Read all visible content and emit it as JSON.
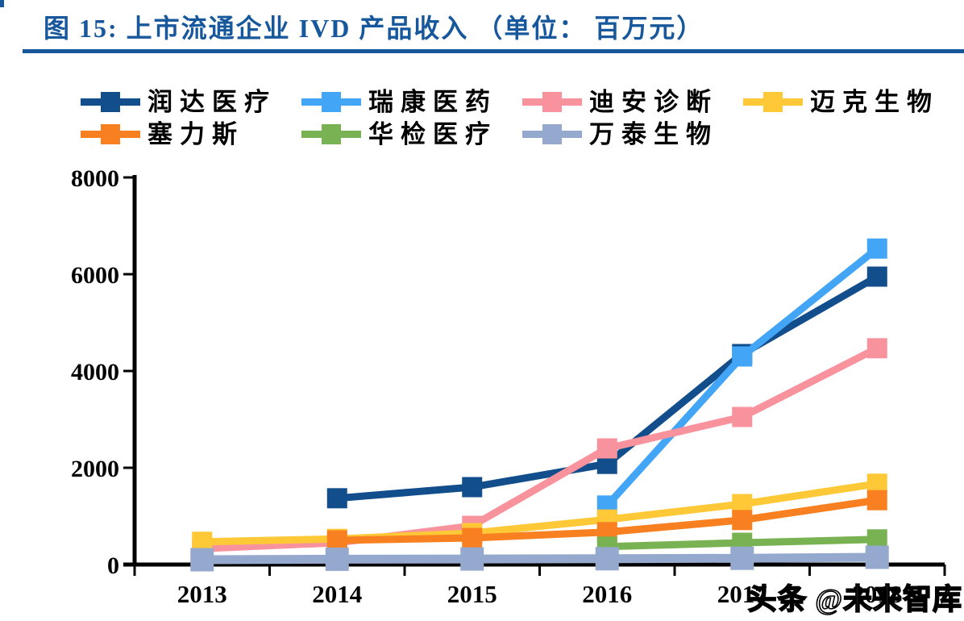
{
  "page": {
    "title": "图 15:  上市流通企业 IVD 产品收入 （单位：  百万元）",
    "watermark": "头条 @未来智库",
    "accent_color": "#17579C"
  },
  "chart_data": {
    "type": "line",
    "figure_label": "图 15",
    "title": "上市流通企业 IVD 产品收入",
    "unit": "百万元",
    "xlabel": "",
    "ylabel": "",
    "categories": [
      "2013",
      "2014",
      "2015",
      "2016",
      "2017",
      "2018"
    ],
    "ylim": [
      0,
      8000
    ],
    "yticks": [
      0,
      2000,
      4000,
      6000,
      8000
    ],
    "grid": false,
    "legend_position": "top",
    "marker": "square",
    "series": [
      {
        "name": "润达医疗",
        "color": "#124E8C",
        "values": [
          null,
          1370,
          1600,
          2080,
          4350,
          5950
        ]
      },
      {
        "name": "瑞康医药",
        "color": "#42A5F5",
        "values": [
          null,
          null,
          null,
          1220,
          4300,
          6530
        ]
      },
      {
        "name": "迪安诊断",
        "color": "#F8939D",
        "values": [
          330,
          450,
          800,
          2400,
          3050,
          4470
        ]
      },
      {
        "name": "迈克生物",
        "color": "#FEC836",
        "values": [
          470,
          530,
          650,
          930,
          1250,
          1670
        ]
      },
      {
        "name": "塞力斯",
        "color": "#F88020",
        "values": [
          null,
          500,
          550,
          670,
          920,
          1330
        ]
      },
      {
        "name": "华检医疗",
        "color": "#79B252",
        "values": [
          null,
          null,
          null,
          370,
          450,
          520
        ]
      },
      {
        "name": "万泰生物",
        "color": "#94A9CD",
        "values": [
          100,
          110,
          115,
          120,
          130,
          150
        ]
      }
    ]
  }
}
